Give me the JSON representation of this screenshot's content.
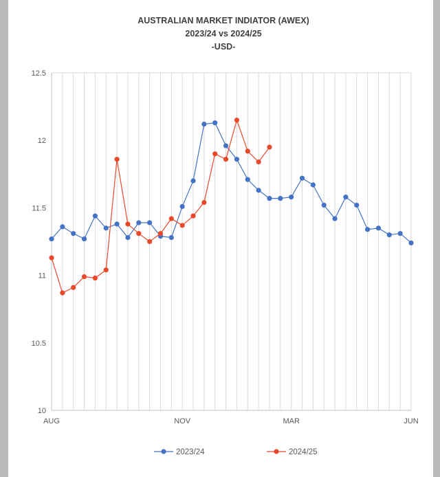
{
  "colors": {
    "series_2023": "#4472c4",
    "series_2024": "#e8492b",
    "grid": "#d9d9d9"
  },
  "chart_data": {
    "type": "line",
    "title": [
      "AUSTRALIAN MARKET INDIATOR (AWEX)",
      "2023/24 vs 2024/25",
      "-USD-"
    ],
    "xlabel": "",
    "ylabel": "",
    "ylim": [
      10,
      12.5
    ],
    "yticks": [
      "12.5",
      "12",
      "11.5",
      "11",
      "10.5",
      "10"
    ],
    "x_tick_labels": [
      {
        "label": "AUG",
        "index": 0
      },
      {
        "label": "NOV",
        "index": 12
      },
      {
        "label": "MAR",
        "index": 22
      },
      {
        "label": "JUN",
        "index": 33
      }
    ],
    "num_points": 34,
    "grid": true,
    "legend": "bottom",
    "series": [
      {
        "name": "2023/24",
        "color": "#4472c4",
        "values": [
          11.27,
          11.36,
          11.31,
          11.27,
          11.44,
          11.35,
          11.38,
          11.28,
          11.39,
          11.39,
          11.29,
          11.28,
          11.51,
          11.7,
          12.12,
          12.13,
          11.96,
          11.86,
          11.71,
          11.63,
          11.57,
          11.57,
          11.58,
          11.72,
          11.67,
          11.52,
          11.42,
          11.58,
          11.52,
          11.34,
          11.35,
          11.3,
          11.31,
          11.24
        ]
      },
      {
        "name": "2024/25",
        "color": "#e8492b",
        "values": [
          11.13,
          10.87,
          10.91,
          10.99,
          10.98,
          11.04,
          11.86,
          11.38,
          11.31,
          11.25,
          11.31,
          11.42,
          11.37,
          11.44,
          11.54,
          11.9,
          11.86,
          12.15,
          11.92,
          11.84,
          11.95
        ]
      }
    ]
  }
}
